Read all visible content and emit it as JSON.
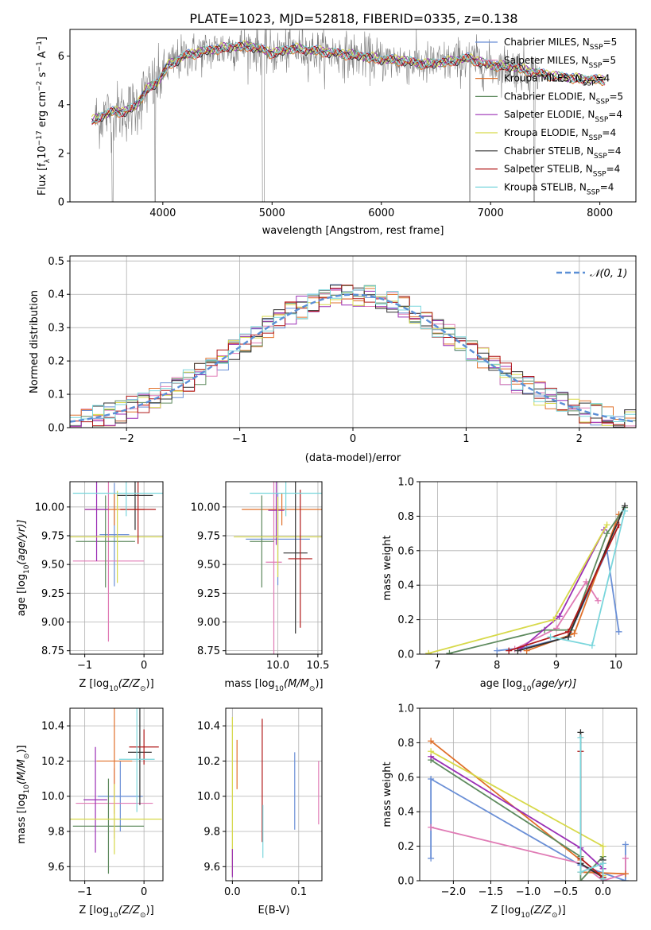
{
  "figure": {
    "title": "PLATE=1023, MJD=52818, FIBERID=0335, z=0.138"
  },
  "chart_data": [
    {
      "id": "spectrum",
      "type": "line",
      "xlabel": "wavelength [Angstrom, rest frame]",
      "ylabel_parts": [
        "Flux [f",
        "λ",
        "10",
        "−17",
        " erg cm",
        "−2",
        " s",
        "−1",
        " A",
        "−1",
        "]"
      ],
      "xlim": [
        3150,
        8330
      ],
      "ylim": [
        0,
        7.1
      ],
      "xticks": [
        4000,
        5000,
        6000,
        7000,
        8000
      ],
      "yticks": [
        0,
        2,
        4,
        6
      ],
      "grid": false,
      "legend_position": "top-right",
      "series": [
        {
          "name": "Chabrier MILES, N",
          "sub": "SSP",
          "suffix": "=5",
          "color": "#6a8fd6",
          "offset": 0.05
        },
        {
          "name": "Salpeter MILES, N",
          "sub": "SSP",
          "suffix": "=5",
          "color": "#e07bb5",
          "offset": 0.0
        },
        {
          "name": "Kroupa MILES, N",
          "sub": "SSP",
          "suffix": "=4",
          "color": "#e0702a",
          "offset": -0.03
        },
        {
          "name": "Chabrier ELODIE, N",
          "sub": "SSP",
          "suffix": "=5",
          "color": "#5e8a5e",
          "offset": 0.02
        },
        {
          "name": "Salpeter ELODIE, N",
          "sub": "SSP",
          "suffix": "=4",
          "color": "#9b2fb5",
          "offset": 0.04
        },
        {
          "name": "Kroupa ELODIE, N",
          "sub": "SSP",
          "suffix": "=4",
          "color": "#d7d94a",
          "offset": 0.06
        },
        {
          "name": "Chabrier STELIB, N",
          "sub": "SSP",
          "suffix": "=4",
          "color": "#303030",
          "offset": -0.02
        },
        {
          "name": "Salpeter STELIB, N",
          "sub": "SSP",
          "suffix": "=4",
          "color": "#b01818",
          "offset": 0.01
        },
        {
          "name": "Kroupa STELIB, N",
          "sub": "SSP",
          "suffix": "=4",
          "color": "#7ad6dc",
          "offset": 0.03
        }
      ],
      "model_curve": {
        "x": [
          3350,
          3450,
          3550,
          3650,
          3750,
          3850,
          3950,
          4050,
          4200,
          4400,
          4600,
          4800,
          5000,
          5200,
          5400,
          5600,
          5800,
          6000,
          6200,
          6400,
          6600,
          6800,
          7000,
          7200,
          7400,
          7600,
          7800,
          8000
        ],
        "y": [
          3.3,
          3.55,
          3.7,
          3.7,
          3.9,
          4.6,
          4.9,
          5.6,
          6.0,
          6.2,
          6.35,
          6.4,
          6.1,
          6.3,
          6.2,
          6.1,
          6.0,
          5.85,
          5.8,
          5.65,
          5.75,
          5.9,
          5.6,
          5.55,
          5.3,
          5.15,
          5.05,
          5.0
        ]
      }
    },
    {
      "id": "residuals",
      "type": "bar",
      "xlabel": "(data-model)/error",
      "ylabel": "Normed distribution",
      "xlim": [
        -2.5,
        2.5
      ],
      "ylim": [
        0,
        0.515
      ],
      "xticks": [
        -2,
        -1,
        0,
        1,
        2
      ],
      "yticks": [
        0.0,
        0.1,
        0.2,
        0.3,
        0.4,
        0.5
      ],
      "grid": true,
      "bin_width": 0.1,
      "legend_position": "top-right",
      "reference": {
        "name": "𝒩(0, 1)",
        "color": "#5b8fd6",
        "style": "dashed"
      }
    },
    {
      "id": "age-vs-Z",
      "type": "scatter",
      "xlabel_parts": [
        "Z [log",
        "10",
        "(Z/Z",
        "⊙",
        ")]"
      ],
      "ylabel_parts": [
        "age  [log",
        "10",
        "(age/yr)]"
      ],
      "xlim": [
        -1.25,
        0.32
      ],
      "ylim": [
        8.72,
        10.22
      ],
      "xticks": [
        -1,
        0
      ],
      "yticks": [
        8.75,
        9.0,
        9.25,
        9.5,
        9.75,
        10.0
      ],
      "grid": true,
      "points": [
        {
          "x": -0.5,
          "xerr": 0.25,
          "y": 9.76,
          "yerr": 0.45,
          "color": "#6a8fd6"
        },
        {
          "x": -0.6,
          "xerr": 0.6,
          "y": 9.53,
          "yerr": 0.7,
          "color": "#e07bb5"
        },
        {
          "x": -0.5,
          "xerr": 0.5,
          "y": 9.98,
          "yerr": 0.14,
          "color": "#e0702a"
        },
        {
          "x": -0.65,
          "xerr": 0.5,
          "y": 9.7,
          "yerr": 0.4,
          "color": "#5e8a5e"
        },
        {
          "x": -0.8,
          "xerr": 0.2,
          "y": 9.98,
          "yerr": 0.45,
          "color": "#9b2fb5"
        },
        {
          "x": -0.45,
          "xerr": 0.85,
          "y": 9.74,
          "yerr": 0.4,
          "color": "#d7d94a"
        },
        {
          "x": -0.15,
          "xerr": 0.3,
          "y": 10.1,
          "yerr": 0.3,
          "color": "#303030"
        },
        {
          "x": -0.1,
          "xerr": 0.3,
          "y": 9.98,
          "yerr": 0.3,
          "color": "#b01818"
        },
        {
          "x": -0.3,
          "xerr": 0.9,
          "y": 10.12,
          "yerr": 0.2,
          "color": "#7ad6dc"
        }
      ]
    },
    {
      "id": "age-vs-mass",
      "type": "scatter",
      "xlabel_parts": [
        "mass [log",
        "10",
        "(M/M",
        "⊙",
        ")]"
      ],
      "ylabel": "",
      "xlim": [
        9.35,
        10.55
      ],
      "ylim": [
        8.72,
        10.22
      ],
      "xticks": [
        10.0,
        10.5
      ],
      "yticks": [
        8.75,
        9.0,
        9.25,
        9.5,
        9.75,
        10.0
      ],
      "grid": true,
      "points": [
        {
          "x": 10.0,
          "xerr": 0.4,
          "y": 9.72,
          "yerr": 0.4,
          "color": "#6a8fd6"
        },
        {
          "x": 9.95,
          "xerr": 0.1,
          "y": 9.52,
          "yerr": 0.8,
          "color": "#e07bb5"
        },
        {
          "x": 10.05,
          "xerr": 0.5,
          "y": 9.98,
          "yerr": 0.14,
          "color": "#e0702a"
        },
        {
          "x": 9.8,
          "xerr": 0.15,
          "y": 9.7,
          "yerr": 0.4,
          "color": "#5e8a5e"
        },
        {
          "x": 9.98,
          "xerr": 0.1,
          "y": 9.97,
          "yerr": 0.3,
          "color": "#9b2fb5"
        },
        {
          "x": 10.0,
          "xerr": 0.55,
          "y": 9.74,
          "yerr": 0.35,
          "color": "#d7d94a"
        },
        {
          "x": 10.22,
          "xerr": 0.15,
          "y": 9.6,
          "yerr": 0.7,
          "color": "#303030"
        },
        {
          "x": 10.28,
          "xerr": 0.15,
          "y": 9.55,
          "yerr": 0.6,
          "color": "#b01818"
        },
        {
          "x": 10.1,
          "xerr": 0.45,
          "y": 10.12,
          "yerr": 0.2,
          "color": "#7ad6dc"
        }
      ]
    },
    {
      "id": "mass-weight-vs-age",
      "type": "line",
      "xlabel_parts": [
        "age  [log",
        "10",
        "(age/yr)]"
      ],
      "ylabel": "mass weight",
      "xlim": [
        6.7,
        10.35
      ],
      "ylim": [
        0,
        1.0
      ],
      "xticks": [
        7,
        8,
        9,
        10
      ],
      "yticks": [
        0.0,
        0.2,
        0.4,
        0.6,
        0.8,
        1.0
      ],
      "grid": true,
      "series": [
        {
          "color": "#6a8fd6",
          "x": [
            8.0,
            8.5,
            9.2,
            9.85,
            10.05
          ],
          "y": [
            0.02,
            0.04,
            0.1,
            0.6,
            0.13
          ]
        },
        {
          "color": "#e07bb5",
          "x": [
            8.3,
            9.0,
            9.5,
            9.7
          ],
          "y": [
            0.03,
            0.15,
            0.42,
            0.31
          ]
        },
        {
          "color": "#e0702a",
          "x": [
            8.5,
            9.3,
            10.05
          ],
          "y": [
            0.02,
            0.12,
            0.81
          ]
        },
        {
          "color": "#5e8a5e",
          "x": [
            7.2,
            8.8,
            9.25,
            9.85,
            10.15
          ],
          "y": [
            0.005,
            0.14,
            0.14,
            0.7,
            0.85
          ]
        },
        {
          "color": "#9b2fb5",
          "x": [
            8.4,
            9.05,
            9.8
          ],
          "y": [
            0.03,
            0.22,
            0.72
          ]
        },
        {
          "color": "#d7d94a",
          "x": [
            6.85,
            8.95,
            9.85
          ],
          "y": [
            0.005,
            0.2,
            0.75
          ]
        },
        {
          "color": "#303030",
          "x": [
            8.35,
            9.2,
            10.15
          ],
          "y": [
            0.02,
            0.1,
            0.86
          ]
        },
        {
          "color": "#b01818",
          "x": [
            8.2,
            9.2,
            10.05
          ],
          "y": [
            0.02,
            0.13,
            0.75
          ]
        },
        {
          "color": "#7ad6dc",
          "x": [
            8.9,
            9.6,
            10.15
          ],
          "y": [
            0.1,
            0.05,
            0.83
          ]
        }
      ]
    },
    {
      "id": "mass-vs-Z",
      "type": "scatter",
      "xlabel_parts": [
        "Z [log",
        "10",
        "(Z/Z",
        "⊙",
        ")]"
      ],
      "ylabel_parts": [
        "mass [log",
        "10",
        "(M/M",
        "⊙",
        ")]"
      ],
      "xlim": [
        -1.25,
        0.32
      ],
      "ylim": [
        9.52,
        10.5
      ],
      "xticks": [
        -1,
        0
      ],
      "yticks": [
        9.6,
        9.8,
        10.0,
        10.2,
        10.4
      ],
      "grid": true,
      "points": [
        {
          "x": -0.4,
          "xerr": 0.38,
          "y": 10.0,
          "yerr": 0.2,
          "color": "#6a8fd6"
        },
        {
          "x": -0.5,
          "xerr": 0.65,
          "y": 9.96,
          "yerr": 0.2,
          "color": "#e07bb5"
        },
        {
          "x": -0.5,
          "xerr": 0.3,
          "y": 10.2,
          "yerr": 0.3,
          "color": "#e0702a"
        },
        {
          "x": -0.6,
          "xerr": 0.6,
          "y": 9.83,
          "yerr": 0.27,
          "color": "#5e8a5e"
        },
        {
          "x": -0.82,
          "xerr": 0.2,
          "y": 9.98,
          "yerr": 0.3,
          "color": "#9b2fb5"
        },
        {
          "x": -0.5,
          "xerr": 0.8,
          "y": 9.87,
          "yerr": 0.2,
          "color": "#d7d94a"
        },
        {
          "x": -0.07,
          "xerr": 0.2,
          "y": 10.25,
          "yerr": 0.3,
          "color": "#303030"
        },
        {
          "x": 0.0,
          "xerr": 0.25,
          "y": 10.28,
          "yerr": 0.1,
          "color": "#b01818"
        },
        {
          "x": -0.12,
          "xerr": 0.3,
          "y": 10.21,
          "yerr": 0.3,
          "color": "#7ad6dc"
        }
      ]
    },
    {
      "id": "mass-vs-EBV",
      "type": "scatter",
      "xlabel": "E(B-V)",
      "ylabel": "",
      "xlim": [
        -0.01,
        0.135
      ],
      "ylim": [
        9.52,
        10.5
      ],
      "xticks": [
        0.0,
        0.1
      ],
      "yticks": [
        9.6,
        9.8,
        10.0,
        10.2,
        10.4
      ],
      "grid": true,
      "points": [
        {
          "x": 0.0,
          "y": 10.0,
          "yerr": 0.45,
          "color": "#d7d94a"
        },
        {
          "x": 0.0,
          "y": 9.62,
          "yerr": 0.08,
          "color": "#9b2fb5"
        },
        {
          "x": 0.007,
          "y": 10.18,
          "yerr": 0.14,
          "color": "#e0702a"
        },
        {
          "x": 0.045,
          "y": 10.09,
          "yerr": 0.35,
          "color": "#b01818"
        },
        {
          "x": 0.046,
          "y": 9.8,
          "yerr": 0.15,
          "color": "#7ad6dc"
        },
        {
          "x": 0.094,
          "y": 10.03,
          "yerr": 0.22,
          "color": "#6a8fd6"
        },
        {
          "x": 0.13,
          "y": 10.02,
          "yerr": 0.18,
          "color": "#e07bb5"
        }
      ]
    },
    {
      "id": "mass-weight-vs-Z",
      "type": "line",
      "xlabel_parts": [
        "Z [log",
        "10",
        "(Z/Z",
        "⊙",
        ")]"
      ],
      "ylabel": "mass weight",
      "xlim": [
        -2.45,
        0.45
      ],
      "ylim": [
        0,
        1.0
      ],
      "xticks": [
        -2.0,
        -1.5,
        -1.0,
        -0.5,
        0.0
      ],
      "yticks": [
        0.0,
        0.2,
        0.4,
        0.6,
        0.8,
        1.0
      ],
      "grid": true,
      "series": [
        {
          "color": "#6a8fd6",
          "x": [
            -2.3,
            -2.3,
            -0.3,
            0.3,
            0.3
          ],
          "y": [
            0.13,
            0.59,
            0.09,
            0.0,
            0.21
          ]
        },
        {
          "color": "#e07bb5",
          "x": [
            -2.3,
            -0.3,
            0.0,
            0.3,
            0.3
          ],
          "y": [
            0.31,
            0.1,
            0.0,
            0.04,
            0.13
          ]
        },
        {
          "color": "#e0702a",
          "x": [
            -2.3,
            -0.3,
            -0.3,
            0.3
          ],
          "y": [
            0.81,
            0.12,
            0.05,
            0.04
          ]
        },
        {
          "color": "#5e8a5e",
          "x": [
            -2.3,
            -0.3,
            -0.3,
            0.0,
            0.0
          ],
          "y": [
            0.7,
            0.14,
            0.0,
            0.14,
            0.02
          ]
        },
        {
          "color": "#9b2fb5",
          "x": [
            -2.3,
            -0.3,
            0.0
          ],
          "y": [
            0.72,
            0.19,
            0.07
          ]
        },
        {
          "color": "#d7d94a",
          "x": [
            -2.3,
            0.0,
            0.0
          ],
          "y": [
            0.75,
            0.2,
            0.03
          ]
        },
        {
          "color": "#303030",
          "x": [
            -0.3,
            -0.3,
            0.0,
            0.0
          ],
          "y": [
            0.86,
            0.1,
            0.02,
            0.12
          ]
        },
        {
          "color": "#b01818",
          "x": [
            -0.3,
            -0.3,
            0.0,
            0.0
          ],
          "y": [
            0.75,
            0.13,
            0.02,
            0.1
          ]
        },
        {
          "color": "#7ad6dc",
          "x": [
            -0.3,
            -0.3,
            0.0,
            0.0
          ],
          "y": [
            0.83,
            0.05,
            0.1,
            0.01
          ]
        }
      ]
    }
  ]
}
